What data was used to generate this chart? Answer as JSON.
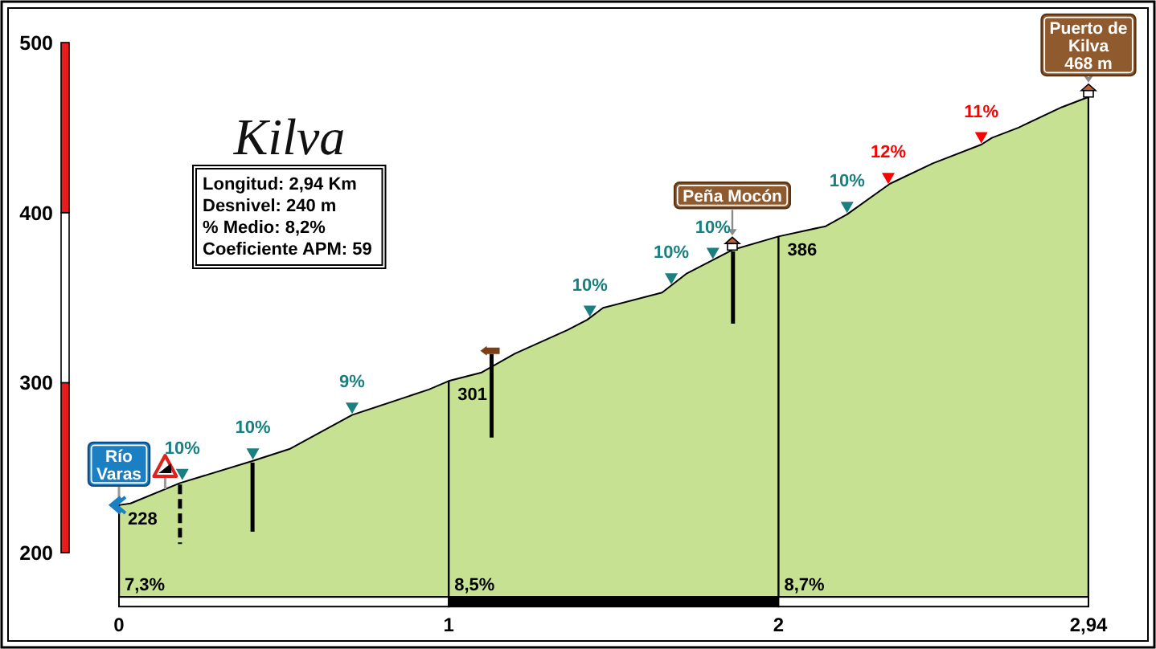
{
  "chart_data": {
    "type": "area",
    "title": "Kilva",
    "subtitle": "Longitud: 2,94 Km\nDesnivel: 240 m\n% Medio: 8,2%\nCoeficiente APM: 59",
    "grid": "x",
    "annotations": [
      "7,3%",
      "8,5%",
      "8,7%",
      {
        "text": "Río\nVaras",
        "x": 0,
        "y": 228
      },
      {
        "text": "Peña Mocón",
        "x": 1.86,
        "y": 378
      },
      {
        "text": "Puerto de\nKilva\n468 m",
        "x": 2.94,
        "y": 468
      },
      {
        "text": "10%",
        "x": 0.192,
        "y": 246
      },
      {
        "text": "10%",
        "x": 0.406,
        "y": 258
      },
      {
        "text": "9%",
        "x": 0.707,
        "y": 285
      },
      {
        "text": "10%",
        "x": 1.428,
        "y": 342
      },
      {
        "text": "10%",
        "x": 1.675,
        "y": 361
      },
      {
        "text": "10%",
        "x": 1.801,
        "y": 376
      },
      {
        "text": "10%",
        "x": 2.208,
        "y": 403
      },
      {
        "text": "12%",
        "x": 2.333,
        "y": 420
      },
      {
        "text": "11%",
        "x": 2.615,
        "y": 444
      }
    ],
    "xlim": [
      0,
      2.94
    ],
    "xticks": [
      0,
      1,
      2,
      {
        "value": 2.94,
        "label": "2,94"
      }
    ],
    "ylim": [
      174,
      500
    ],
    "yticks": [
      200,
      300,
      400,
      500
    ],
    "series": [
      {
        "color": "#c6e192",
        "x": [
          0,
          0.035,
          0.185,
          0.406,
          0.517,
          0.707,
          0.94,
          1,
          1.1,
          1.2,
          1.36,
          1.42,
          1.468,
          1.647,
          1.72,
          1.859,
          2,
          2.143,
          2.208,
          2.338,
          2.468,
          2.615,
          2.647,
          2.728,
          2.859,
          2.94
        ],
        "values": [
          228,
          229,
          241,
          254,
          261,
          281,
          296,
          301,
          306,
          317,
          331,
          337,
          344,
          353,
          364,
          378,
          386,
          392,
          399,
          417,
          429,
          440,
          444,
          450,
          462,
          468
        ],
        "value_labels": [
          "228",
          null,
          null,
          null,
          null,
          null,
          null,
          "301",
          null,
          null,
          null,
          null,
          null,
          null,
          null,
          null,
          "386",
          null,
          null,
          null,
          null,
          null,
          null,
          null,
          null,
          null
        ]
      },
      {
        "type": "scatter",
        "color": "#1a7f80",
        "marker": "triangle",
        "x": [
          0.192,
          0.406,
          0.707,
          1.428,
          1.675,
          1.801,
          2.208
        ],
        "values": [
          246,
          258,
          285,
          342,
          361,
          376,
          403
        ]
      },
      {
        "type": "scatter",
        "color": "#ff0000",
        "marker": "triangle",
        "x": [
          2.333,
          2.615
        ],
        "values": [
          420,
          444
        ]
      }
    ]
  }
}
